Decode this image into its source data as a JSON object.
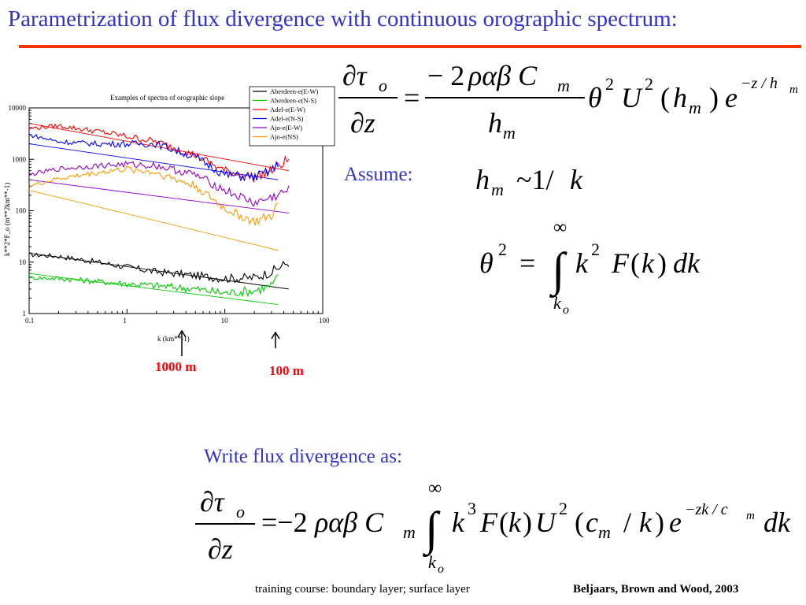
{
  "slide": {
    "title": "Parametrization of flux divergence with continuous orographic spectrum:",
    "assume_label": "Assume:",
    "write_label": "Write flux divergence as:",
    "footer_course": "training course: boundary layer; surface layer",
    "footer_citation": "Beljaars, Brown and Wood, 2003",
    "arrow_labels": [
      "1000 m",
      "100 m"
    ],
    "colors": {
      "title": "#3333cc",
      "rule": "#ff3300",
      "arrow_label": "#ff0000"
    }
  },
  "chart_data": {
    "type": "line",
    "title": "Examples of spectra of orographic slope",
    "xlabel": "k (km**-1)",
    "ylabel": "k**2*F_o  (m**2km**-1)",
    "xscale": "log",
    "yscale": "log",
    "xlim": [
      0.1,
      100
    ],
    "ylim": [
      1,
      10000
    ],
    "xticks": [
      "0.1",
      "1",
      "10",
      "100"
    ],
    "yticks": [
      "1",
      "10",
      "100",
      "1000",
      "10000"
    ],
    "legend_position": "top-right",
    "series": [
      {
        "name": "Aberdeen-e(E-W)",
        "color": "#000000",
        "x": [
          0.1,
          0.2,
          0.5,
          1,
          2,
          5,
          10,
          20,
          30,
          45
        ],
        "y": [
          14,
          13,
          10,
          8,
          6.5,
          5.5,
          4.8,
          5,
          6.5,
          10
        ]
      },
      {
        "name": "Aberdeen-e(N-S)",
        "color": "#00cc00",
        "x": [
          0.1,
          0.2,
          0.5,
          1,
          2,
          5,
          10,
          20,
          30,
          35
        ],
        "y": [
          5,
          4.8,
          4.2,
          3.8,
          3.5,
          3,
          2.5,
          2.8,
          3.5,
          5
        ]
      },
      {
        "name": "Adel-e(E-W)",
        "color": "#ff0000",
        "x": [
          0.1,
          0.2,
          0.5,
          1,
          2,
          5,
          10,
          20,
          30,
          45
        ],
        "y": [
          4000,
          4500,
          3500,
          2800,
          2200,
          1200,
          600,
          450,
          600,
          1000
        ]
      },
      {
        "name": "Adel-e(N-S)",
        "color": "#0000ff",
        "x": [
          0.1,
          0.2,
          0.5,
          1,
          2,
          5,
          10,
          20,
          30,
          35
        ],
        "y": [
          3000,
          2200,
          2000,
          2000,
          2000,
          1100,
          500,
          450,
          600,
          800
        ]
      },
      {
        "name": "Ajo-e(E-W)",
        "color": "#9900cc",
        "x": [
          0.1,
          0.2,
          0.5,
          1,
          2,
          5,
          10,
          20,
          30,
          45
        ],
        "y": [
          500,
          650,
          750,
          800,
          750,
          500,
          250,
          140,
          180,
          250
        ]
      },
      {
        "name": "Ajo-e(NS)",
        "color": "#ff9900",
        "x": [
          0.1,
          0.2,
          0.5,
          1,
          2,
          5,
          10,
          20,
          30,
          35
        ],
        "y": [
          300,
          420,
          550,
          650,
          550,
          300,
          110,
          60,
          80,
          130
        ]
      }
    ],
    "fit_lines": [
      {
        "color": "#ff0000",
        "x": [
          0.1,
          45
        ],
        "y": [
          5000,
          600
        ]
      },
      {
        "color": "#0000ff",
        "x": [
          0.1,
          35
        ],
        "y": [
          2000,
          400
        ]
      },
      {
        "color": "#9900cc",
        "x": [
          0.1,
          45
        ],
        "y": [
          400,
          90
        ]
      },
      {
        "color": "#ff9900",
        "x": [
          0.1,
          35
        ],
        "y": [
          250,
          17
        ]
      },
      {
        "color": "#000000",
        "x": [
          0.1,
          45
        ],
        "y": [
          15,
          3
        ]
      },
      {
        "color": "#00cc00",
        "x": [
          0.1,
          35
        ],
        "y": [
          6,
          1.5
        ]
      }
    ]
  }
}
